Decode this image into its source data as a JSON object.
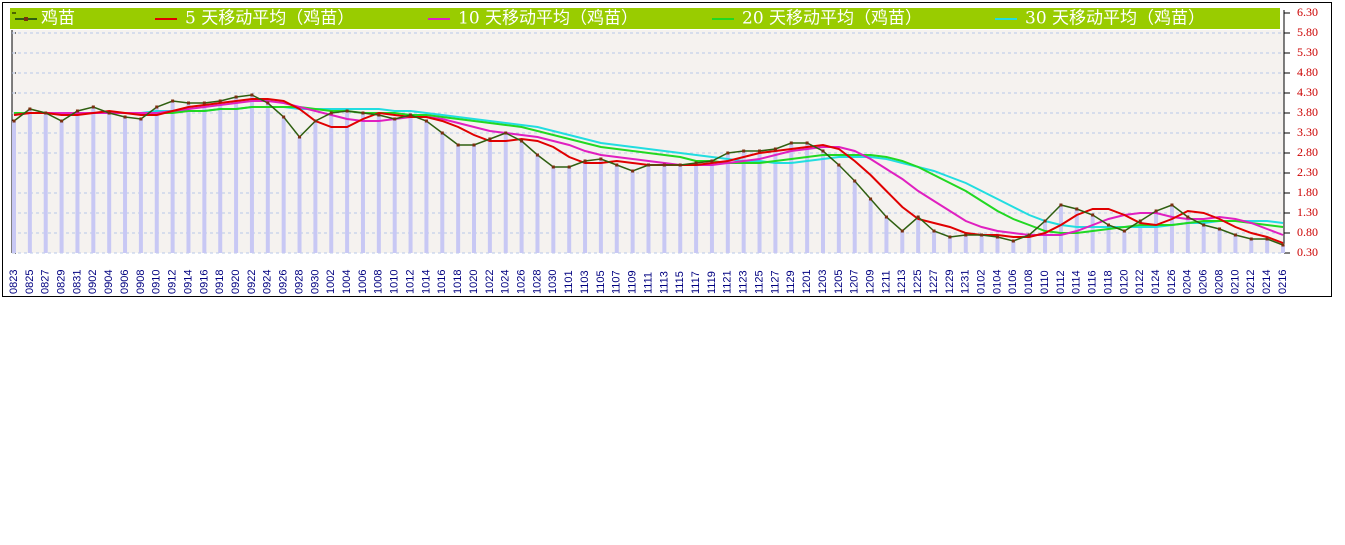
{
  "chart_data": {
    "type": "line",
    "grid": true,
    "categories": [
      "0823",
      "0825",
      "0827",
      "0829",
      "0831",
      "0902",
      "0904",
      "0906",
      "0908",
      "0910",
      "0912",
      "0914",
      "0916",
      "0918",
      "0920",
      "0922",
      "0924",
      "0926",
      "0928",
      "0930",
      "1002",
      "1004",
      "1006",
      "1008",
      "1010",
      "1012",
      "1014",
      "1016",
      "1018",
      "1020",
      "1022",
      "1024",
      "1026",
      "1028",
      "1030",
      "1101",
      "1103",
      "1105",
      "1107",
      "1109",
      "1111",
      "1113",
      "1115",
      "1117",
      "1119",
      "1121",
      "1123",
      "1125",
      "1127",
      "1129",
      "1201",
      "1203",
      "1205",
      "1207",
      "1209",
      "1211",
      "1213",
      "1225",
      "1227",
      "1229",
      "1231",
      "0102",
      "0104",
      "0106",
      "0108",
      "0110",
      "0112",
      "0114",
      "0116",
      "0118",
      "0120",
      "0122",
      "0124",
      "0126",
      "0204",
      "0206",
      "0208",
      "0210",
      "0212",
      "0214",
      "0216"
    ],
    "ylim": [
      0.3,
      6.3
    ],
    "yticks": [
      {
        "value": 0.3,
        "label": "0.30"
      },
      {
        "value": 0.8,
        "label": "0.80"
      },
      {
        "value": 1.3,
        "label": "1.30"
      },
      {
        "value": 1.8,
        "label": "1.80"
      },
      {
        "value": 2.3,
        "label": "2.30"
      },
      {
        "value": 2.8,
        "label": "2.80"
      },
      {
        "value": 3.3,
        "label": "3.30"
      },
      {
        "value": 3.8,
        "label": "3.80"
      },
      {
        "value": 4.3,
        "label": "4.30"
      },
      {
        "value": 4.8,
        "label": "4.80"
      },
      {
        "value": 5.3,
        "label": "5.30"
      },
      {
        "value": 5.8,
        "label": "5.80"
      },
      {
        "value": 6.3,
        "label": "6.30"
      }
    ],
    "series": [
      {
        "name": "鸡苗",
        "color": "#2f5f10",
        "values": [
          3.6,
          3.9,
          3.8,
          3.6,
          3.85,
          3.95,
          3.8,
          3.7,
          3.65,
          3.95,
          4.1,
          4.05,
          4.05,
          4.1,
          4.2,
          4.25,
          4.05,
          3.7,
          3.2,
          3.6,
          3.8,
          3.85,
          3.8,
          3.75,
          3.65,
          3.75,
          3.6,
          3.3,
          3.0,
          3.0,
          3.15,
          3.3,
          3.1,
          2.75,
          2.45,
          2.45,
          2.6,
          2.65,
          2.5,
          2.35,
          2.5,
          2.5,
          2.5,
          2.55,
          2.6,
          2.8,
          2.85,
          2.85,
          2.9,
          3.05,
          3.05,
          2.85,
          2.5,
          2.1,
          1.65,
          1.2,
          0.85,
          1.2,
          0.85,
          0.7,
          0.75,
          0.75,
          0.7,
          0.6,
          0.75,
          1.1,
          1.5,
          1.4,
          1.25,
          1.0,
          0.85,
          1.1,
          1.35,
          1.5,
          1.2,
          1.0,
          0.9,
          0.75,
          0.65,
          0.65,
          0.5
        ]
      },
      {
        "name": "5 天移动平均（鸡苗）",
        "color": "#e00000",
        "values": [
          3.75,
          3.8,
          3.8,
          3.75,
          3.75,
          3.8,
          3.85,
          3.8,
          3.75,
          3.75,
          3.85,
          3.95,
          4.0,
          4.05,
          4.1,
          4.15,
          4.15,
          4.1,
          3.9,
          3.6,
          3.45,
          3.45,
          3.65,
          3.8,
          3.75,
          3.7,
          3.7,
          3.6,
          3.45,
          3.25,
          3.1,
          3.1,
          3.15,
          3.1,
          2.95,
          2.7,
          2.55,
          2.55,
          2.6,
          2.55,
          2.5,
          2.5,
          2.5,
          2.5,
          2.55,
          2.6,
          2.7,
          2.8,
          2.85,
          2.9,
          2.95,
          3.0,
          2.9,
          2.6,
          2.25,
          1.85,
          1.45,
          1.15,
          1.05,
          0.95,
          0.8,
          0.75,
          0.75,
          0.7,
          0.7,
          0.8,
          1.0,
          1.25,
          1.4,
          1.4,
          1.25,
          1.05,
          1.0,
          1.15,
          1.35,
          1.3,
          1.15,
          0.95,
          0.8,
          0.7,
          0.55
        ]
      },
      {
        "name": "10 天移动平均（鸡苗）",
        "color": "#e020c0",
        "values": [
          3.75,
          3.8,
          3.8,
          3.8,
          3.8,
          3.8,
          3.8,
          3.8,
          3.8,
          3.8,
          3.85,
          3.9,
          3.95,
          4.0,
          4.05,
          4.1,
          4.1,
          4.05,
          3.95,
          3.85,
          3.75,
          3.65,
          3.6,
          3.6,
          3.65,
          3.7,
          3.7,
          3.65,
          3.55,
          3.45,
          3.35,
          3.3,
          3.25,
          3.2,
          3.1,
          3.0,
          2.85,
          2.75,
          2.7,
          2.65,
          2.6,
          2.55,
          2.5,
          2.5,
          2.5,
          2.55,
          2.6,
          2.65,
          2.75,
          2.85,
          2.9,
          2.95,
          2.95,
          2.85,
          2.65,
          2.4,
          2.15,
          1.85,
          1.6,
          1.35,
          1.1,
          0.95,
          0.85,
          0.8,
          0.75,
          0.75,
          0.75,
          0.85,
          1.0,
          1.15,
          1.25,
          1.3,
          1.3,
          1.2,
          1.15,
          1.15,
          1.2,
          1.15,
          1.05,
          0.9,
          0.75
        ]
      },
      {
        "name": "20 天移动平均（鸡苗）",
        "color": "#22d822",
        "values": [
          3.8,
          3.8,
          3.8,
          3.8,
          3.8,
          3.8,
          3.8,
          3.8,
          3.8,
          3.8,
          3.8,
          3.85,
          3.85,
          3.9,
          3.9,
          3.95,
          3.95,
          3.95,
          3.95,
          3.9,
          3.85,
          3.85,
          3.8,
          3.8,
          3.8,
          3.75,
          3.75,
          3.7,
          3.65,
          3.6,
          3.55,
          3.5,
          3.45,
          3.35,
          3.25,
          3.15,
          3.05,
          2.95,
          2.9,
          2.85,
          2.8,
          2.75,
          2.7,
          2.6,
          2.6,
          2.55,
          2.55,
          2.55,
          2.6,
          2.65,
          2.7,
          2.75,
          2.75,
          2.75,
          2.75,
          2.7,
          2.6,
          2.45,
          2.25,
          2.05,
          1.85,
          1.6,
          1.35,
          1.15,
          1.0,
          0.85,
          0.8,
          0.8,
          0.85,
          0.9,
          0.95,
          1.0,
          1.0,
          1.0,
          1.05,
          1.1,
          1.1,
          1.1,
          1.05,
          1.0,
          0.95
        ]
      },
      {
        "name": "30 天移动平均（鸡苗）",
        "color": "#22dde0",
        "values": [
          3.8,
          3.8,
          3.8,
          3.8,
          3.8,
          3.8,
          3.8,
          3.8,
          3.8,
          3.85,
          3.85,
          3.85,
          3.85,
          3.9,
          3.9,
          3.95,
          3.95,
          3.95,
          3.9,
          3.9,
          3.9,
          3.9,
          3.9,
          3.9,
          3.85,
          3.85,
          3.8,
          3.75,
          3.7,
          3.65,
          3.6,
          3.55,
          3.5,
          3.45,
          3.35,
          3.25,
          3.15,
          3.05,
          3.0,
          2.95,
          2.9,
          2.85,
          2.8,
          2.75,
          2.7,
          2.65,
          2.6,
          2.6,
          2.55,
          2.55,
          2.6,
          2.65,
          2.7,
          2.7,
          2.7,
          2.65,
          2.55,
          2.45,
          2.35,
          2.2,
          2.05,
          1.85,
          1.65,
          1.45,
          1.25,
          1.1,
          1.0,
          0.95,
          0.95,
          0.95,
          0.95,
          0.95,
          0.95,
          1.0,
          1.05,
          1.05,
          1.1,
          1.1,
          1.1,
          1.1,
          1.05
        ]
      }
    ]
  }
}
